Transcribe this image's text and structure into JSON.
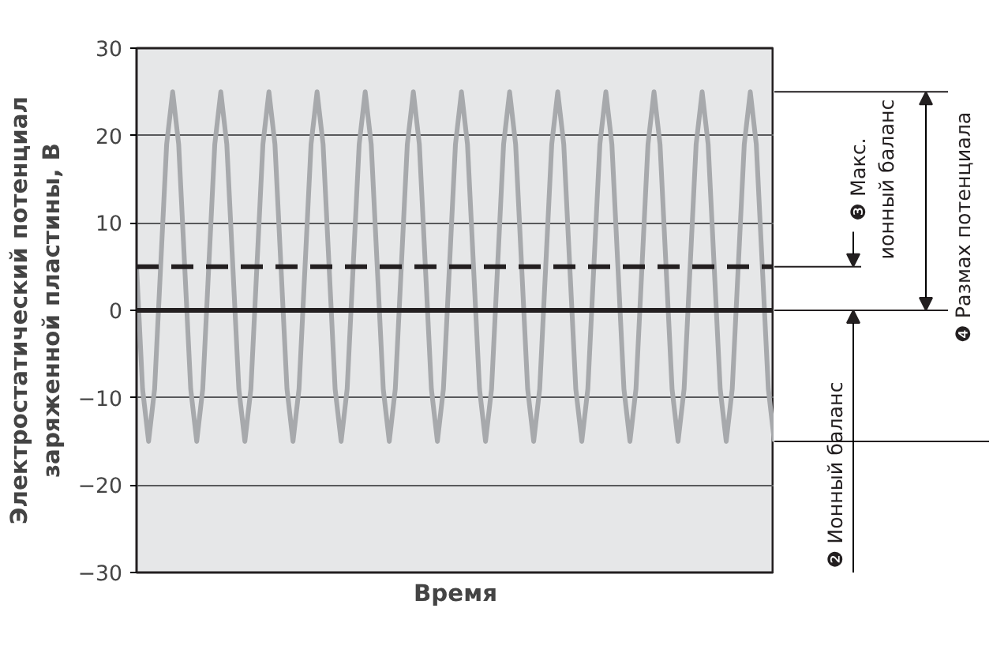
{
  "chart_data": {
    "type": "line",
    "xlabel": "Время",
    "ylabel": "Электростатический потенциал\nзаряженной пластины, В",
    "categories": [
      null,
      null,
      null,
      null,
      null,
      null,
      null,
      null,
      null,
      null,
      null,
      null,
      null,
      null,
      null,
      null,
      null,
      null,
      null,
      null,
      null,
      null,
      null,
      null,
      null,
      null,
      null,
      null,
      null,
      null,
      null,
      null,
      null,
      null,
      null,
      null,
      null,
      null,
      null,
      null,
      null,
      null,
      null,
      null,
      null,
      null,
      null,
      null,
      null,
      null,
      null,
      null,
      null,
      null,
      null,
      null,
      null,
      null,
      null,
      null,
      null,
      null,
      null,
      null,
      null,
      null,
      null,
      null,
      null,
      null,
      null,
      null,
      null,
      null,
      null,
      null,
      null,
      null,
      null,
      null,
      null,
      null,
      null,
      null,
      null,
      null,
      null,
      null,
      null,
      null,
      null,
      null,
      null,
      null,
      null,
      null,
      null,
      null,
      null,
      null,
      null,
      null,
      null,
      null,
      null,
      null,
      null
    ],
    "series": [
      {
        "color": "#a7a9ac",
        "values": [
          5,
          -9,
          -15,
          -9,
          5,
          19,
          25,
          19,
          5,
          -9,
          -15,
          -9,
          5,
          19,
          25,
          19,
          5,
          -9,
          -15,
          -9,
          5,
          19,
          25,
          19,
          5,
          -9,
          -15,
          -9,
          5,
          19,
          25,
          19,
          5,
          -9,
          -15,
          -9,
          5,
          19,
          25,
          19,
          5,
          -9,
          -15,
          -9,
          5,
          19,
          25,
          19,
          5,
          -9,
          -15,
          -9,
          5,
          19,
          25,
          19,
          5,
          -9,
          -15,
          -9,
          5,
          19,
          25,
          19,
          5,
          -9,
          -15,
          -9,
          5,
          19,
          25,
          19,
          5,
          -9,
          -15,
          -9,
          5,
          19,
          25,
          19,
          5,
          -9,
          -15,
          -9,
          5,
          19,
          25,
          19,
          5,
          -9,
          -15,
          -9,
          5,
          19,
          25,
          19,
          5,
          -9,
          -15,
          -9,
          5,
          19,
          25,
          19,
          5,
          -9,
          -15
        ]
      }
    ],
    "ylim": [
      -30,
      30
    ],
    "yticks": [
      {
        "value": -30,
        "label": "−30"
      },
      {
        "value": -20,
        "label": "−20"
      },
      {
        "value": -10,
        "label": "−10"
      },
      0,
      10,
      20,
      30
    ],
    "grid": "y",
    "tick_labels": "y",
    "marker": "none",
    "line_style": "solid",
    "ref_lines": [
      {
        "axis": "y",
        "value": 5,
        "color": "#231f20",
        "line_style": "dashed"
      },
      {
        "axis": "y",
        "value": 0,
        "color": "#231f20",
        "line_style": "solid"
      }
    ],
    "annotations": [
      "❸ Макс.\nионный баланс",
      "❹ Размах потенциала",
      "❷ Ионный баланс"
    ]
  }
}
